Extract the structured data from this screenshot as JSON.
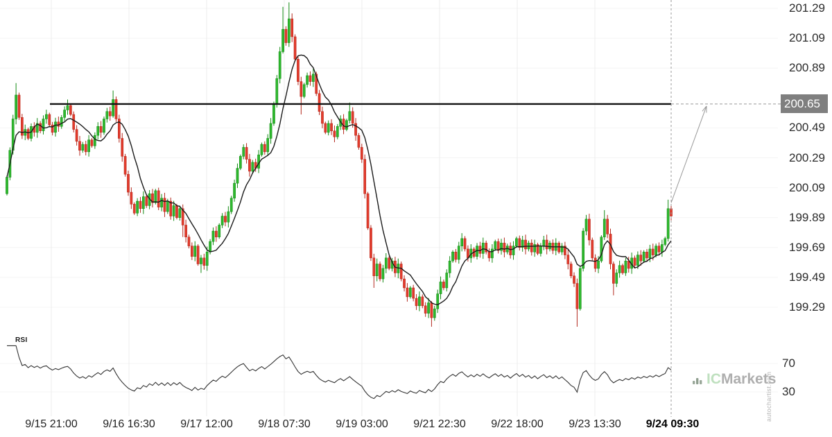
{
  "chart_data": {
    "type": "candlestick",
    "title": "",
    "xlabel": "",
    "ylabel": "",
    "x_tick_labels": [
      "9/15 21:00",
      "9/16 16:30",
      "9/17 12:00",
      "9/18 07:30",
      "9/19 03:00",
      "9/21 22:30",
      "9/22 18:00",
      "9/23 13:30",
      "9/24 09:30"
    ],
    "y_tick_prices": [
      201.29,
      201.09,
      200.89,
      200.49,
      200.29,
      200.09,
      199.89,
      199.69,
      199.49,
      199.29
    ],
    "ylim": [
      199.16,
      201.33
    ],
    "grid": true,
    "resistance": {
      "price": 200.65,
      "label": "200.65"
    },
    "projection_arrow": {
      "from_price": 199.98,
      "to_price": 200.65
    },
    "overlays": {
      "ma_period": 9
    },
    "rsi": {
      "label": "RSI",
      "period": 14,
      "tick_levels": [
        70,
        30
      ]
    },
    "series": {
      "open_first": 200.05,
      "closes": [
        200.16,
        200.34,
        200.55,
        200.71,
        200.56,
        200.44,
        200.48,
        200.42,
        200.5,
        200.46,
        200.52,
        200.47,
        200.55,
        200.58,
        200.51,
        200.46,
        200.53,
        200.5,
        200.56,
        200.61,
        200.64,
        200.58,
        200.48,
        200.4,
        200.34,
        200.38,
        200.33,
        200.41,
        200.37,
        200.44,
        200.5,
        200.46,
        200.55,
        200.6,
        200.57,
        200.68,
        200.55,
        200.42,
        200.3,
        200.18,
        200.06,
        199.98,
        199.92,
        200.0,
        199.95,
        200.03,
        199.97,
        200.05,
        199.99,
        200.07,
        199.96,
        200.02,
        199.93,
        200.0,
        199.9,
        199.97,
        199.89,
        199.95,
        199.84,
        199.76,
        199.7,
        199.63,
        199.7,
        199.58,
        199.62,
        199.57,
        199.66,
        199.73,
        199.8,
        199.76,
        199.84,
        199.9,
        199.86,
        199.93,
        200.02,
        200.12,
        200.22,
        200.3,
        200.36,
        200.28,
        200.2,
        200.26,
        200.22,
        200.31,
        200.38,
        200.33,
        200.42,
        200.52,
        200.65,
        200.82,
        201.0,
        201.15,
        201.06,
        201.22,
        201.1,
        200.95,
        200.8,
        200.7,
        200.78,
        200.84,
        200.8,
        200.85,
        200.72,
        200.6,
        200.52,
        200.46,
        200.52,
        200.47,
        200.43,
        200.5,
        200.55,
        200.48,
        200.54,
        200.6,
        200.52,
        200.44,
        200.36,
        200.28,
        200.05,
        199.82,
        199.62,
        199.5,
        199.58,
        199.48,
        199.55,
        199.62,
        199.55,
        199.6,
        199.52,
        199.58,
        199.48,
        199.42,
        199.36,
        199.42,
        199.35,
        199.3,
        199.36,
        199.3,
        199.25,
        199.32,
        199.22,
        199.28,
        199.38,
        199.46,
        199.42,
        199.52,
        199.6,
        199.66,
        199.61,
        199.7,
        199.75,
        199.68,
        199.62,
        199.68,
        199.63,
        199.7,
        199.65,
        199.72,
        199.66,
        199.62,
        199.68,
        199.73,
        199.67,
        199.72,
        199.66,
        199.7,
        199.64,
        199.7,
        199.75,
        199.69,
        199.74,
        199.68,
        199.72,
        199.66,
        199.71,
        199.65,
        199.7,
        199.74,
        199.68,
        199.72,
        199.67,
        199.72,
        199.66,
        199.7,
        199.64,
        199.58,
        199.5,
        199.45,
        199.28,
        199.55,
        199.8,
        199.88,
        199.74,
        199.62,
        199.55,
        199.6,
        199.76,
        199.88,
        199.78,
        199.58,
        199.45,
        199.52,
        199.57,
        199.52,
        199.6,
        199.55,
        199.62,
        199.57,
        199.64,
        199.6,
        199.66,
        199.62,
        199.68,
        199.64,
        199.7,
        199.66,
        199.71,
        199.75,
        199.95,
        199.9
      ],
      "wick_overrides": {
        "3": {
          "h": 200.79
        },
        "20": {
          "h": 200.68
        },
        "35": {
          "h": 200.74
        },
        "58": {
          "l": 199.76
        },
        "64": {
          "l": 199.52
        },
        "91": {
          "h": 201.3
        },
        "93": {
          "h": 201.33
        },
        "97": {
          "l": 200.58
        },
        "113": {
          "h": 200.66
        },
        "121": {
          "l": 199.42
        },
        "140": {
          "l": 199.16
        },
        "188": {
          "l": 199.16
        },
        "197": {
          "h": 199.94
        },
        "200": {
          "l": 199.37
        },
        "218": {
          "h": 200.01
        }
      }
    }
  },
  "watermark": {
    "brand_ic": "IC",
    "brand_markets": "Markets"
  },
  "credit": "autochartist.com",
  "colors": {
    "up": "#2eb82e",
    "up_stroke": "#128a12",
    "down": "#e23b2c",
    "down_stroke": "#b3271c",
    "ma_line": "#1a1a1a",
    "rsi_line": "#333333",
    "resistance_line": "#111111",
    "guide": "#999999",
    "grid_v": "#ececec",
    "grid_h": "#f4f4f4",
    "axis_text": "#2b2b2b",
    "box_bg": "#7f7f7f",
    "box_text": "#ffffff",
    "wm_green": "#bfe0bf",
    "wm_gray": "#aeaeae"
  }
}
